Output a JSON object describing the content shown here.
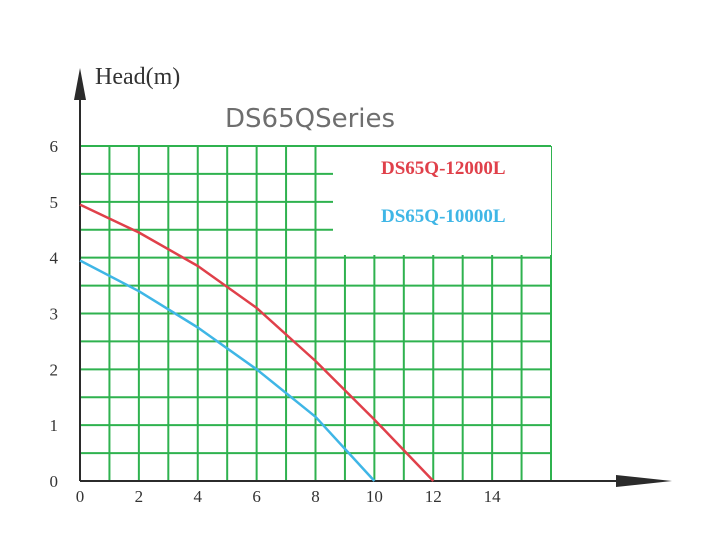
{
  "chart_data": {
    "type": "line",
    "title": "DS65QSeries",
    "ylabel": "Head(m)",
    "xlabel": "",
    "xlim": [
      0,
      16
    ],
    "ylim": [
      0,
      6
    ],
    "x_ticks": [
      "0",
      "2",
      "4",
      "6",
      "8",
      "10",
      "12",
      "14"
    ],
    "y_ticks": [
      "0",
      "1",
      "2",
      "3",
      "4",
      "5",
      "6"
    ],
    "grid": true,
    "grid_color": "#2fb24f",
    "legend_position": "top-right",
    "series": [
      {
        "name": "DS65Q-12000L",
        "color": "#e0404a",
        "points": [
          [
            0,
            4.95
          ],
          [
            2,
            4.45
          ],
          [
            4,
            3.85
          ],
          [
            6,
            3.1
          ],
          [
            8,
            2.15
          ],
          [
            10,
            1.1
          ],
          [
            12,
            0
          ]
        ]
      },
      {
        "name": "DS65Q-10000L",
        "color": "#3fb6e6",
        "points": [
          [
            0,
            3.95
          ],
          [
            2,
            3.4
          ],
          [
            4,
            2.75
          ],
          [
            6,
            2.0
          ],
          [
            8,
            1.15
          ],
          [
            10,
            0
          ]
        ]
      }
    ]
  }
}
